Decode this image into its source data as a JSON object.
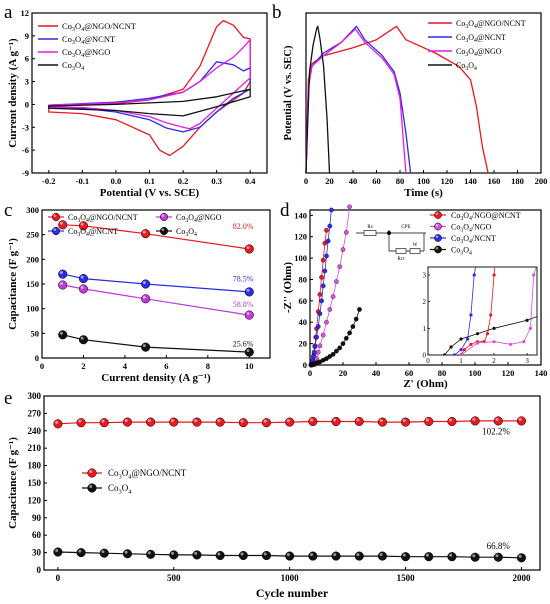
{
  "chart_data": [
    {
      "panel": "a",
      "type": "line",
      "xlabel": "Potential (V vs. SCE)",
      "ylabel": "Current density (A g⁻¹)",
      "xlim": [
        -0.25,
        0.45
      ],
      "ylim": [
        -9,
        12
      ],
      "xticks": [
        -0.2,
        -0.1,
        0.0,
        0.1,
        0.2,
        0.3,
        0.4
      ],
      "xtick_labels": [
        "-0.2",
        "-0.1",
        "0.0",
        "0.1",
        "0.2",
        "0.3",
        "0.4"
      ],
      "yticks": [
        -9,
        -6,
        -3,
        0,
        3,
        6,
        9,
        12
      ],
      "ytick_labels": [
        "-9",
        "-6",
        "-3",
        "0",
        "3",
        "6",
        "9",
        "12"
      ],
      "legend_position": "top-left",
      "series": [
        {
          "name": "Co₃O₄@NGO/NCNT",
          "color": "#e8191f",
          "x": [
            -0.2,
            0.0,
            0.1,
            0.2,
            0.25,
            0.3,
            0.32,
            0.35,
            0.38,
            0.4,
            0.4,
            0.38,
            0.3,
            0.25,
            0.2,
            0.16,
            0.13,
            0.1,
            0.0,
            -0.1,
            -0.2,
            -0.2
          ],
          "y": [
            -0.2,
            0.1,
            0.6,
            2.0,
            5.0,
            10.2,
            11.0,
            10.4,
            8.8,
            8.6,
            3.0,
            1.5,
            -1.0,
            -3.0,
            -5.5,
            -6.7,
            -6.0,
            -4.0,
            -2.0,
            -1.2,
            -1.0,
            -0.2
          ]
        },
        {
          "name": "Co₃O₄@NCNT",
          "color": "#2b2be8",
          "x": [
            -0.2,
            0.0,
            0.1,
            0.2,
            0.25,
            0.3,
            0.35,
            0.38,
            0.4,
            0.4,
            0.35,
            0.3,
            0.25,
            0.2,
            0.15,
            0.1,
            0.0,
            -0.1,
            -0.2,
            -0.2
          ],
          "y": [
            -0.1,
            0.3,
            0.8,
            1.6,
            3.0,
            5.6,
            5.2,
            4.4,
            4.8,
            2.0,
            0.8,
            -1.0,
            -3.0,
            -3.6,
            -3.1,
            -2.0,
            -1.0,
            -0.5,
            -0.3,
            -0.1
          ]
        },
        {
          "name": "Co₃O₄@NGO",
          "color": "#e31ce3",
          "x": [
            -0.2,
            0.0,
            0.1,
            0.2,
            0.25,
            0.3,
            0.35,
            0.38,
            0.4,
            0.4,
            0.35,
            0.3,
            0.25,
            0.22,
            0.2,
            0.15,
            0.1,
            0.0,
            -0.1,
            -0.2,
            -0.2
          ],
          "y": [
            -0.1,
            0.2,
            0.6,
            1.6,
            3.0,
            4.8,
            6.2,
            7.5,
            8.5,
            3.5,
            1.5,
            -0.5,
            -2.5,
            -3.2,
            -3.0,
            -2.4,
            -1.6,
            -0.8,
            -0.4,
            -0.3,
            -0.1
          ]
        },
        {
          "name": "Co₃O₄",
          "color": "#111111",
          "x": [
            -0.2,
            0.0,
            0.2,
            0.3,
            0.4,
            0.4,
            0.3,
            0.2,
            0.1,
            0.0,
            -0.2,
            -0.2
          ],
          "y": [
            -0.2,
            0.0,
            0.4,
            1.0,
            2.0,
            1.0,
            -0.3,
            -1.5,
            -1.2,
            -0.8,
            -0.5,
            -0.2
          ]
        }
      ]
    },
    {
      "panel": "b",
      "type": "line",
      "xlabel": "Time (s)",
      "ylabel": "Potential (V vs. SEC)",
      "xlim": [
        0,
        200
      ],
      "ylim": [
        -0.2,
        0.4
      ],
      "xticks": [
        0,
        20,
        40,
        60,
        80,
        100,
        120,
        140,
        160,
        180,
        200
      ],
      "xtick_labels": [
        "0",
        "20",
        "40",
        "60",
        "80",
        "100",
        "120",
        "140",
        "160",
        "180",
        "200"
      ],
      "legend_position": "top-right",
      "series": [
        {
          "name": "Co₃O₄@NGO/NCNT",
          "color": "#e8191f",
          "x": [
            0,
            2,
            5,
            15,
            40,
            60,
            77,
            85,
            110,
            130,
            140,
            145,
            150,
            155
          ],
          "y": [
            -0.2,
            0.15,
            0.21,
            0.24,
            0.27,
            0.3,
            0.35,
            0.3,
            0.25,
            0.2,
            0.15,
            0.05,
            -0.1,
            -0.2
          ]
        },
        {
          "name": "Co₃O₄@NCNT",
          "color": "#2b2be8",
          "x": [
            0,
            2,
            5,
            15,
            30,
            43,
            50,
            65,
            75,
            80,
            85,
            89
          ],
          "y": [
            -0.2,
            0.12,
            0.2,
            0.25,
            0.29,
            0.35,
            0.3,
            0.24,
            0.18,
            0.1,
            -0.05,
            -0.2
          ]
        },
        {
          "name": "Co₃O₄@NGO",
          "color": "#e31ce3",
          "x": [
            0,
            2,
            5,
            15,
            30,
            42,
            50,
            65,
            75,
            80,
            85
          ],
          "y": [
            -0.2,
            0.12,
            0.2,
            0.24,
            0.29,
            0.34,
            0.29,
            0.23,
            0.17,
            0.08,
            -0.2
          ]
        },
        {
          "name": "Co₃O₄",
          "color": "#111111",
          "x": [
            0,
            3,
            6,
            9,
            10,
            12,
            15,
            18,
            20
          ],
          "y": [
            -0.2,
            0.18,
            0.28,
            0.34,
            0.35,
            0.3,
            0.2,
            0.0,
            -0.2
          ]
        }
      ]
    },
    {
      "panel": "c",
      "type": "line",
      "xlabel": "Current density (A g⁻¹)",
      "ylabel": "Capacitance (F g⁻¹)",
      "xlim": [
        0,
        11
      ],
      "ylim": [
        0,
        300
      ],
      "xticks": [
        0,
        2,
        4,
        6,
        8,
        10
      ],
      "xtick_labels": [
        "0",
        "2",
        "4",
        "6",
        "8",
        "10"
      ],
      "yticks": [
        0,
        50,
        100,
        150,
        200,
        250,
        300
      ],
      "ytick_labels": [
        "0",
        "50",
        "100",
        "150",
        "200",
        "250",
        "300"
      ],
      "legend_position": "top",
      "annotations": [
        "82.0%",
        "78.5%",
        "58.8%",
        "25.6%"
      ],
      "series": [
        {
          "name": "Co₃O₄@NGO/NCNT",
          "color": "#e8191f",
          "x": [
            1,
            2,
            5,
            10
          ],
          "y": [
            270,
            268,
            252,
            221
          ]
        },
        {
          "name": "Co₃O₄@NCNT",
          "color": "#2b2be8",
          "x": [
            1,
            2,
            5,
            10
          ],
          "y": [
            170,
            161,
            150,
            134
          ]
        },
        {
          "name": "Co₃O₄@NGO",
          "color": "#c03ad8",
          "x": [
            1,
            2,
            5,
            10
          ],
          "y": [
            148,
            140,
            120,
            87
          ]
        },
        {
          "name": "Co₃O₄",
          "color": "#111111",
          "x": [
            1,
            2,
            5,
            10
          ],
          "y": [
            47,
            37,
            22,
            12
          ]
        }
      ]
    },
    {
      "panel": "d",
      "type": "scatter",
      "xlabel": "Z' (Ohm)",
      "ylabel": "-Z'' (Ohm)",
      "xlim": [
        0,
        140
      ],
      "ylim": [
        0,
        145
      ],
      "xticks": [
        0,
        20,
        40,
        60,
        80,
        100,
        120,
        140
      ],
      "xtick_labels": [
        "0",
        "20",
        "40",
        "60",
        "80",
        "100",
        "120",
        "140"
      ],
      "yticks": [
        0,
        20,
        40,
        60,
        80,
        100,
        120,
        140
      ],
      "ytick_labels": [
        "0",
        "20",
        "40",
        "60",
        "80",
        "100",
        "120",
        "140"
      ],
      "legend_position": "top-right",
      "circuit_labels": [
        "Rs",
        "CPE",
        "Rct",
        "W"
      ],
      "inset": {
        "xlim": [
          0,
          3.3
        ],
        "ylim": [
          0,
          3.3
        ],
        "xticks": [
          0,
          1,
          2,
          3
        ],
        "xtick_labels": [
          "0",
          "1",
          "2",
          "3"
        ],
        "yticks": [
          0,
          1,
          2,
          3
        ],
        "ytick_labels": [
          "0",
          "1",
          "2",
          "3"
        ]
      },
      "series": [
        {
          "name": "Co₃O₄/NGO@NCNT",
          "color": "#e8191f",
          "x": [
            1.0,
            1.1,
            1.3,
            1.5,
            1.7,
            1.8,
            1.9,
            2.0,
            2.2,
            2.5,
            3.0,
            3.5,
            4.0,
            5.0,
            6.0,
            7.0,
            8.0,
            9.0,
            10.0
          ],
          "y": [
            0.0,
            0.2,
            0.4,
            0.5,
            0.5,
            0.8,
            1.5,
            3.0,
            6.0,
            10.0,
            18.0,
            26.0,
            34.0,
            50.0,
            66.0,
            82.0,
            98.0,
            114.0,
            126.0
          ]
        },
        {
          "name": "Co₃O₄/NGO",
          "color": "#d54fe0",
          "x": [
            1.0,
            1.5,
            2.0,
            2.5,
            2.9,
            3.1,
            3.2,
            4,
            5,
            6,
            8,
            10,
            12,
            14,
            16,
            18,
            20,
            22,
            24
          ],
          "y": [
            0.0,
            0.45,
            0.5,
            0.4,
            0.5,
            1.0,
            3.0,
            6,
            12,
            18,
            28,
            40,
            52,
            64,
            78,
            92,
            108,
            124,
            148
          ]
        },
        {
          "name": "Co₃O₄/NCNT",
          "color": "#2b2be8",
          "x": [
            0.8,
            1.0,
            1.2,
            1.3,
            1.4,
            1.6,
            2.0,
            2.5,
            3.0,
            4.0,
            5.0,
            6.0,
            7.0,
            8.0,
            9.0,
            10.0,
            11.0,
            12.0,
            13.0
          ],
          "y": [
            0.0,
            0.2,
            0.6,
            1.5,
            3.0,
            4.5,
            8.0,
            12.0,
            17.0,
            26.0,
            36.0,
            48.0,
            60.0,
            74.0,
            88.0,
            102.0,
            116.0,
            130.0,
            145.0
          ]
        },
        {
          "name": "Co₃O₄",
          "color": "#111111",
          "x": [
            0.5,
            0.7,
            1.0,
            1.5,
            2.0,
            3.0,
            4.5,
            6,
            8,
            10,
            12,
            14,
            16,
            18,
            20,
            22,
            24,
            26,
            28,
            30
          ],
          "y": [
            0.0,
            0.3,
            0.6,
            0.8,
            1.0,
            1.3,
            2.0,
            3,
            4.5,
            6,
            8,
            10,
            13,
            16,
            20,
            25,
            30,
            36,
            43,
            52
          ]
        }
      ]
    },
    {
      "panel": "e",
      "type": "line",
      "xlabel": "Cycle number",
      "ylabel": "Capacitance (F g⁻¹)",
      "xlim": [
        -60,
        2080
      ],
      "ylim": [
        0,
        300
      ],
      "xticks": [
        0,
        500,
        1000,
        1500,
        2000
      ],
      "xtick_labels": [
        "0",
        "500",
        "1000",
        "1500",
        "2000"
      ],
      "yticks": [
        0,
        30,
        60,
        90,
        120,
        150,
        180,
        210,
        240,
        270,
        300
      ],
      "ytick_labels": [
        "0",
        "30",
        "60",
        "90",
        "120",
        "150",
        "180",
        "210",
        "240",
        "270",
        "300"
      ],
      "legend_position": "center-left",
      "annotations": [
        "102.2%",
        "66.8%"
      ],
      "series": [
        {
          "name": "Co₃O₄@NGO/NCNT",
          "color": "#e8191f",
          "x": [
            0,
            100,
            200,
            300,
            400,
            500,
            600,
            700,
            800,
            900,
            1000,
            1100,
            1200,
            1300,
            1400,
            1500,
            1600,
            1700,
            1800,
            1900,
            2000
          ],
          "y": [
            252,
            254,
            254,
            255,
            255,
            255,
            255,
            255,
            254,
            254,
            255,
            256,
            256,
            256,
            255,
            255,
            256,
            256,
            257,
            257,
            257
          ]
        },
        {
          "name": "Co₃O₄",
          "color": "#111111",
          "x": [
            0,
            100,
            200,
            300,
            400,
            500,
            600,
            700,
            800,
            900,
            1000,
            1100,
            1200,
            1300,
            1400,
            1500,
            1600,
            1700,
            1800,
            1900,
            2000
          ],
          "y": [
            31,
            30,
            29,
            28,
            27,
            26,
            26,
            25,
            25,
            25,
            24,
            24,
            24,
            24,
            24,
            23,
            23,
            23,
            22,
            22,
            21
          ]
        }
      ]
    }
  ]
}
